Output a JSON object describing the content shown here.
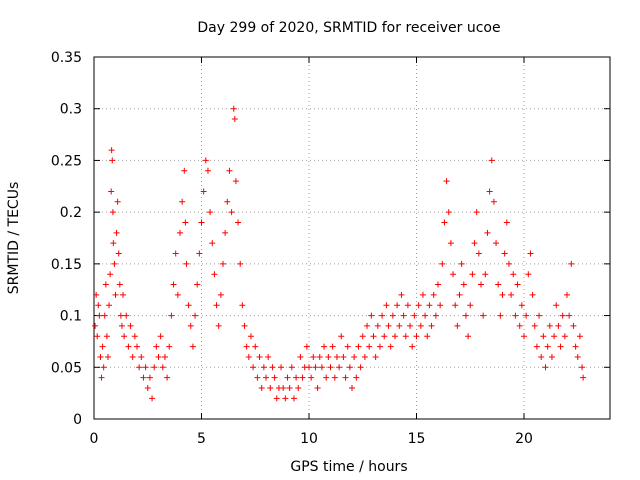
{
  "chart_data": {
    "type": "scatter",
    "title": "Day 299 of 2020, SRMTID for receiver ucoe",
    "xlabel": "GPS time / hours",
    "ylabel": "SRMTID / TECUs",
    "xlim": [
      0,
      24
    ],
    "ylim": [
      0,
      0.35
    ],
    "xticks": [
      0,
      5,
      10,
      15,
      20
    ],
    "xtick_labels": [
      "0",
      "5",
      "10",
      "15",
      "20"
    ],
    "yticks": [
      0,
      0.05,
      0.1,
      0.15,
      0.2,
      0.25,
      0.3,
      0.35
    ],
    "ytick_labels": [
      "0",
      "0.05",
      "0.1",
      "0.15",
      "0.2",
      "0.25",
      "0.3",
      "0.35"
    ],
    "grid": true,
    "marker": "+",
    "series": [
      {
        "name": "SRMTID",
        "color": "#ff0000",
        "points": [
          [
            0.05,
            0.09
          ],
          [
            0.1,
            0.12
          ],
          [
            0.15,
            0.08
          ],
          [
            0.2,
            0.11
          ],
          [
            0.25,
            0.1
          ],
          [
            0.3,
            0.06
          ],
          [
            0.35,
            0.04
          ],
          [
            0.4,
            0.07
          ],
          [
            0.45,
            0.05
          ],
          [
            0.5,
            0.1
          ],
          [
            0.55,
            0.13
          ],
          [
            0.6,
            0.08
          ],
          [
            0.65,
            0.06
          ],
          [
            0.7,
            0.11
          ],
          [
            0.75,
            0.14
          ],
          [
            0.8,
            0.22
          ],
          [
            0.82,
            0.26
          ],
          [
            0.85,
            0.25
          ],
          [
            0.88,
            0.2
          ],
          [
            0.9,
            0.17
          ],
          [
            0.95,
            0.15
          ],
          [
            1.0,
            0.12
          ],
          [
            1.05,
            0.18
          ],
          [
            1.1,
            0.21
          ],
          [
            1.15,
            0.16
          ],
          [
            1.2,
            0.13
          ],
          [
            1.25,
            0.1
          ],
          [
            1.3,
            0.09
          ],
          [
            1.35,
            0.12
          ],
          [
            1.4,
            0.08
          ],
          [
            1.5,
            0.1
          ],
          [
            1.6,
            0.07
          ],
          [
            1.7,
            0.09
          ],
          [
            1.8,
            0.06
          ],
          [
            1.9,
            0.08
          ],
          [
            2.0,
            0.07
          ],
          [
            2.1,
            0.05
          ],
          [
            2.2,
            0.06
          ],
          [
            2.3,
            0.04
          ],
          [
            2.4,
            0.05
          ],
          [
            2.5,
            0.03
          ],
          [
            2.6,
            0.04
          ],
          [
            2.7,
            0.02
          ],
          [
            2.8,
            0.05
          ],
          [
            2.9,
            0.07
          ],
          [
            3.0,
            0.06
          ],
          [
            3.1,
            0.08
          ],
          [
            3.2,
            0.05
          ],
          [
            3.3,
            0.06
          ],
          [
            3.4,
            0.04
          ],
          [
            3.5,
            0.07
          ],
          [
            3.6,
            0.1
          ],
          [
            3.7,
            0.13
          ],
          [
            3.8,
            0.16
          ],
          [
            3.9,
            0.12
          ],
          [
            4.0,
            0.18
          ],
          [
            4.1,
            0.21
          ],
          [
            4.2,
            0.24
          ],
          [
            4.25,
            0.19
          ],
          [
            4.3,
            0.15
          ],
          [
            4.4,
            0.11
          ],
          [
            4.5,
            0.09
          ],
          [
            4.6,
            0.07
          ],
          [
            4.7,
            0.1
          ],
          [
            4.8,
            0.13
          ],
          [
            4.9,
            0.16
          ],
          [
            5.0,
            0.19
          ],
          [
            5.1,
            0.22
          ],
          [
            5.2,
            0.25
          ],
          [
            5.3,
            0.24
          ],
          [
            5.4,
            0.2
          ],
          [
            5.5,
            0.17
          ],
          [
            5.6,
            0.14
          ],
          [
            5.7,
            0.11
          ],
          [
            5.8,
            0.09
          ],
          [
            5.9,
            0.12
          ],
          [
            6.0,
            0.15
          ],
          [
            6.1,
            0.18
          ],
          [
            6.2,
            0.21
          ],
          [
            6.3,
            0.24
          ],
          [
            6.4,
            0.2
          ],
          [
            6.5,
            0.3
          ],
          [
            6.55,
            0.29
          ],
          [
            6.6,
            0.23
          ],
          [
            6.7,
            0.19
          ],
          [
            6.8,
            0.15
          ],
          [
            6.9,
            0.11
          ],
          [
            7.0,
            0.09
          ],
          [
            7.1,
            0.07
          ],
          [
            7.2,
            0.06
          ],
          [
            7.3,
            0.08
          ],
          [
            7.4,
            0.05
          ],
          [
            7.5,
            0.07
          ],
          [
            7.6,
            0.04
          ],
          [
            7.7,
            0.06
          ],
          [
            7.8,
            0.03
          ],
          [
            7.9,
            0.05
          ],
          [
            8.0,
            0.04
          ],
          [
            8.1,
            0.06
          ],
          [
            8.2,
            0.03
          ],
          [
            8.3,
            0.05
          ],
          [
            8.4,
            0.04
          ],
          [
            8.5,
            0.02
          ],
          [
            8.6,
            0.03
          ],
          [
            8.7,
            0.05
          ],
          [
            8.8,
            0.03
          ],
          [
            8.9,
            0.02
          ],
          [
            9.0,
            0.04
          ],
          [
            9.1,
            0.03
          ],
          [
            9.2,
            0.05
          ],
          [
            9.3,
            0.02
          ],
          [
            9.4,
            0.04
          ],
          [
            9.5,
            0.03
          ],
          [
            9.6,
            0.06
          ],
          [
            9.7,
            0.04
          ],
          [
            9.8,
            0.05
          ],
          [
            9.9,
            0.07
          ],
          [
            10.0,
            0.05
          ],
          [
            10.1,
            0.04
          ],
          [
            10.2,
            0.06
          ],
          [
            10.3,
            0.05
          ],
          [
            10.4,
            0.03
          ],
          [
            10.5,
            0.06
          ],
          [
            10.6,
            0.05
          ],
          [
            10.7,
            0.07
          ],
          [
            10.8,
            0.04
          ],
          [
            10.9,
            0.06
          ],
          [
            11.0,
            0.05
          ],
          [
            11.1,
            0.07
          ],
          [
            11.2,
            0.04
          ],
          [
            11.3,
            0.06
          ],
          [
            11.4,
            0.05
          ],
          [
            11.5,
            0.08
          ],
          [
            11.6,
            0.06
          ],
          [
            11.7,
            0.04
          ],
          [
            11.8,
            0.07
          ],
          [
            11.9,
            0.05
          ],
          [
            12.0,
            0.03
          ],
          [
            12.1,
            0.06
          ],
          [
            12.2,
            0.04
          ],
          [
            12.3,
            0.07
          ],
          [
            12.4,
            0.05
          ],
          [
            12.5,
            0.08
          ],
          [
            12.6,
            0.06
          ],
          [
            12.7,
            0.09
          ],
          [
            12.8,
            0.07
          ],
          [
            12.9,
            0.1
          ],
          [
            13.0,
            0.08
          ],
          [
            13.1,
            0.06
          ],
          [
            13.2,
            0.09
          ],
          [
            13.3,
            0.07
          ],
          [
            13.4,
            0.1
          ],
          [
            13.5,
            0.08
          ],
          [
            13.6,
            0.11
          ],
          [
            13.7,
            0.09
          ],
          [
            13.8,
            0.07
          ],
          [
            13.9,
            0.1
          ],
          [
            14.0,
            0.08
          ],
          [
            14.1,
            0.11
          ],
          [
            14.2,
            0.09
          ],
          [
            14.3,
            0.12
          ],
          [
            14.4,
            0.1
          ],
          [
            14.5,
            0.08
          ],
          [
            14.6,
            0.11
          ],
          [
            14.7,
            0.09
          ],
          [
            14.8,
            0.07
          ],
          [
            14.9,
            0.1
          ],
          [
            15.0,
            0.08
          ],
          [
            15.1,
            0.11
          ],
          [
            15.2,
            0.09
          ],
          [
            15.3,
            0.12
          ],
          [
            15.4,
            0.1
          ],
          [
            15.5,
            0.08
          ],
          [
            15.6,
            0.11
          ],
          [
            15.7,
            0.09
          ],
          [
            15.8,
            0.12
          ],
          [
            15.9,
            0.1
          ],
          [
            16.0,
            0.13
          ],
          [
            16.1,
            0.11
          ],
          [
            16.2,
            0.15
          ],
          [
            16.3,
            0.19
          ],
          [
            16.4,
            0.23
          ],
          [
            16.5,
            0.2
          ],
          [
            16.6,
            0.17
          ],
          [
            16.7,
            0.14
          ],
          [
            16.8,
            0.11
          ],
          [
            16.9,
            0.09
          ],
          [
            17.0,
            0.12
          ],
          [
            17.1,
            0.15
          ],
          [
            17.2,
            0.13
          ],
          [
            17.3,
            0.1
          ],
          [
            17.4,
            0.08
          ],
          [
            17.5,
            0.11
          ],
          [
            17.6,
            0.14
          ],
          [
            17.7,
            0.17
          ],
          [
            17.8,
            0.2
          ],
          [
            17.9,
            0.16
          ],
          [
            18.0,
            0.13
          ],
          [
            18.1,
            0.1
          ],
          [
            18.2,
            0.14
          ],
          [
            18.3,
            0.18
          ],
          [
            18.4,
            0.22
          ],
          [
            18.5,
            0.25
          ],
          [
            18.6,
            0.21
          ],
          [
            18.7,
            0.17
          ],
          [
            18.8,
            0.13
          ],
          [
            18.9,
            0.1
          ],
          [
            19.0,
            0.12
          ],
          [
            19.1,
            0.16
          ],
          [
            19.2,
            0.19
          ],
          [
            19.3,
            0.15
          ],
          [
            19.4,
            0.12
          ],
          [
            19.5,
            0.14
          ],
          [
            19.6,
            0.1
          ],
          [
            19.7,
            0.13
          ],
          [
            19.8,
            0.09
          ],
          [
            19.9,
            0.11
          ],
          [
            20.0,
            0.08
          ],
          [
            20.1,
            0.1
          ],
          [
            20.2,
            0.14
          ],
          [
            20.3,
            0.16
          ],
          [
            20.4,
            0.12
          ],
          [
            20.5,
            0.09
          ],
          [
            20.6,
            0.07
          ],
          [
            20.7,
            0.1
          ],
          [
            20.8,
            0.06
          ],
          [
            20.9,
            0.08
          ],
          [
            21.0,
            0.05
          ],
          [
            21.1,
            0.07
          ],
          [
            21.2,
            0.09
          ],
          [
            21.3,
            0.06
          ],
          [
            21.4,
            0.08
          ],
          [
            21.5,
            0.11
          ],
          [
            21.6,
            0.09
          ],
          [
            21.7,
            0.07
          ],
          [
            21.8,
            0.1
          ],
          [
            21.9,
            0.08
          ],
          [
            22.0,
            0.12
          ],
          [
            22.1,
            0.1
          ],
          [
            22.2,
            0.15
          ],
          [
            22.3,
            0.09
          ],
          [
            22.4,
            0.07
          ],
          [
            22.5,
            0.06
          ],
          [
            22.6,
            0.08
          ],
          [
            22.7,
            0.05
          ],
          [
            22.75,
            0.04
          ]
        ]
      }
    ]
  }
}
